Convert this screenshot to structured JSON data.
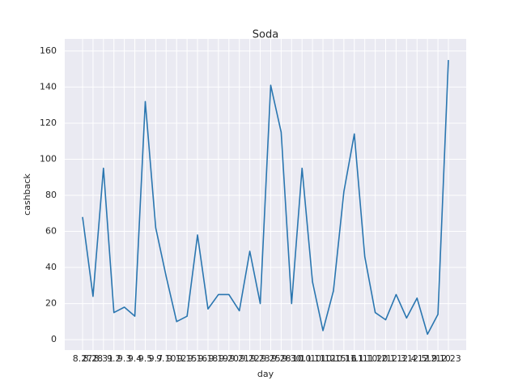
{
  "chart_data": {
    "type": "line",
    "title": "Soda",
    "xlabel": "day",
    "ylabel": "cashback",
    "categories": [
      "8.27",
      "8.28",
      "8.31",
      "9.2",
      "9.3",
      "9.4",
      "9.5",
      "9.7",
      "9.10",
      "9.12",
      "9.15",
      "9.16",
      "9.18",
      "9.19",
      "9.20",
      "9.21",
      "9.22",
      "9.23",
      "9.25",
      "9.28",
      "9.30",
      "10.1",
      "10.11",
      "10.12",
      "10.15",
      "10.16",
      "11.1",
      "11.10",
      "11.20",
      "12.1",
      "12.3",
      "12.4",
      "12.5",
      "12.9",
      "12.10",
      "12.23"
    ],
    "series": [
      {
        "name": "cashback",
        "color": "#2a76b0",
        "values": [
          68,
          24,
          95,
          15,
          18,
          13,
          132,
          62,
          35,
          10,
          13,
          58,
          17,
          25,
          25,
          16,
          49,
          20,
          141,
          115,
          20,
          95,
          32,
          5,
          27,
          82,
          114,
          46,
          15,
          11,
          25,
          12,
          23,
          3,
          14,
          155
        ]
      }
    ],
    "ylim": [
      -5.8,
      166.7
    ],
    "yticks": [
      0,
      20,
      40,
      60,
      80,
      100,
      120,
      140,
      160
    ],
    "grid": true
  }
}
